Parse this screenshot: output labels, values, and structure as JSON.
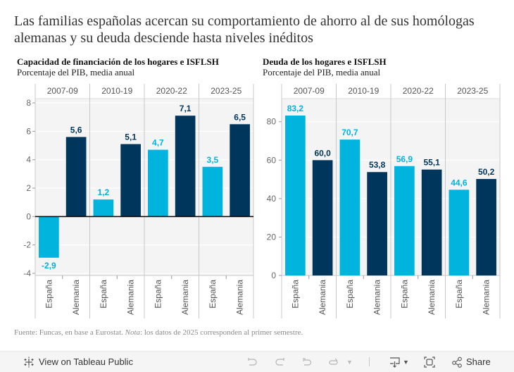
{
  "page": {
    "title": "Las familias españolas acercan su comportamiento de ahorro al de sus homólogas alemanas y su deuda desciende hasta niveles inéditos",
    "footer_source": "Fuente: Funcas, en base a Eurostat. ",
    "footer_nota_label": "Nota",
    "footer_nota_text": ": los datos de 2025 corresponden al primer semestre."
  },
  "toolbar": {
    "view_label": "View on Tableau Public",
    "share_label": "Share",
    "icons": [
      "tableau-logo-icon",
      "undo-icon",
      "redo-icon",
      "revert-icon",
      "refresh-icon",
      "dropdown-caret-icon",
      "download-icon",
      "fullscreen-icon",
      "share-icon"
    ]
  },
  "colors": {
    "espana": "#00b4de",
    "alemania": "#00365c",
    "pane_bg": "#f4f4f4",
    "grid": "#ffffff",
    "divider": "#c8c8c8",
    "axis_text": "#666666"
  },
  "chart_data": [
    {
      "type": "bar",
      "title": "Capacidad de financiación de los hogares e ISFLSH",
      "subtitle": "Porcentaje del PIB, media anual",
      "periods": [
        "2007-09",
        "2010-19",
        "2020-22",
        "2023-25"
      ],
      "categories": [
        "España",
        "Alemania"
      ],
      "series": [
        {
          "name": "España",
          "values": [
            -2.9,
            1.2,
            4.7,
            3.5
          ],
          "labels": [
            "-2,9",
            "1,2",
            "4,7",
            "3,5"
          ]
        },
        {
          "name": "Alemania",
          "values": [
            5.6,
            5.1,
            7.1,
            6.5
          ],
          "labels": [
            "5,6",
            "5,1",
            "7,1",
            "6,5"
          ]
        }
      ],
      "yticks": [
        -4,
        -2,
        0,
        2,
        4,
        6,
        8
      ],
      "ylim": [
        -4.15,
        8.3
      ],
      "grid": true,
      "zero_line": true
    },
    {
      "type": "bar",
      "title": "Deuda de los hogares e ISFLSH",
      "subtitle": "Porcentaje del PIB, media anual",
      "periods": [
        "2007-09",
        "2010-19",
        "2020-22",
        "2023-25"
      ],
      "categories": [
        "España",
        "Alemania"
      ],
      "series": [
        {
          "name": "España",
          "values": [
            83.2,
            70.7,
            56.9,
            44.6
          ],
          "labels": [
            "83,2",
            "70,7",
            "56,9",
            "44,6"
          ]
        },
        {
          "name": "Alemania",
          "values": [
            60.0,
            53.8,
            55.1,
            50.2
          ],
          "labels": [
            "60,0",
            "53,8",
            "55,1",
            "50,2"
          ]
        }
      ],
      "yticks": [
        0,
        20,
        40,
        60,
        80
      ],
      "ylim": [
        0,
        92
      ],
      "grid": true,
      "zero_line": false
    }
  ]
}
